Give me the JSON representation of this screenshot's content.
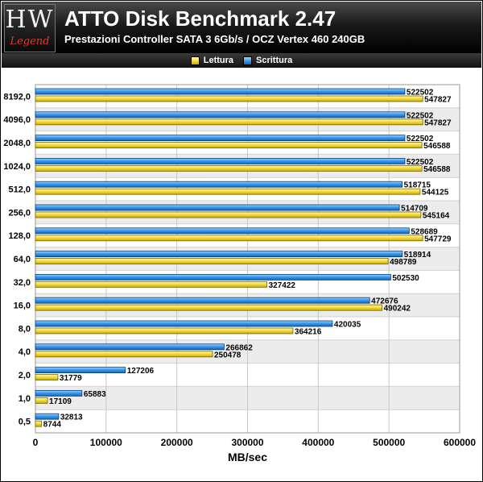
{
  "header": {
    "logo_main": "HW",
    "logo_sub": "Legend",
    "title": "ATTO Disk Benchmark 2.47",
    "subtitle": "Prestazioni Controller SATA 3 6Gb/s / OCZ Vertex 460 240GB"
  },
  "chart_data": {
    "type": "bar",
    "orientation": "horizontal",
    "title": "ATTO Disk Benchmark 2.47",
    "subtitle": "Prestazioni Controller SATA 3 6Gb/s / OCZ Vertex 460 240GB",
    "xlabel": "MB/sec",
    "ylabel": "",
    "xlim": [
      0,
      600000
    ],
    "x_ticks": [
      "0",
      "100000",
      "200000",
      "300000",
      "400000",
      "500000",
      "600000"
    ],
    "categories": [
      "8192,0",
      "4096,0",
      "2048,0",
      "1024,0",
      "512,0",
      "256,0",
      "128,0",
      "64,0",
      "32,0",
      "16,0",
      "8,0",
      "4,0",
      "2,0",
      "1,0",
      "0,5"
    ],
    "series": [
      {
        "name": "Scrittura",
        "color": "#2f8fe0",
        "values": [
          522502,
          522502,
          522502,
          522502,
          518715,
          514709,
          528689,
          518914,
          502530,
          472676,
          420035,
          266862,
          127206,
          65883,
          32813
        ]
      },
      {
        "name": "Lettura",
        "color": "#f2dc3a",
        "values": [
          547827,
          547827,
          546588,
          546588,
          544125,
          545164,
          547729,
          498789,
          327422,
          490242,
          364216,
          250478,
          31779,
          17109,
          8744
        ]
      }
    ],
    "legend_position": "top-center",
    "legend_order": [
      "Lettura",
      "Scrittura"
    ],
    "grid": true,
    "row_banding": true
  }
}
